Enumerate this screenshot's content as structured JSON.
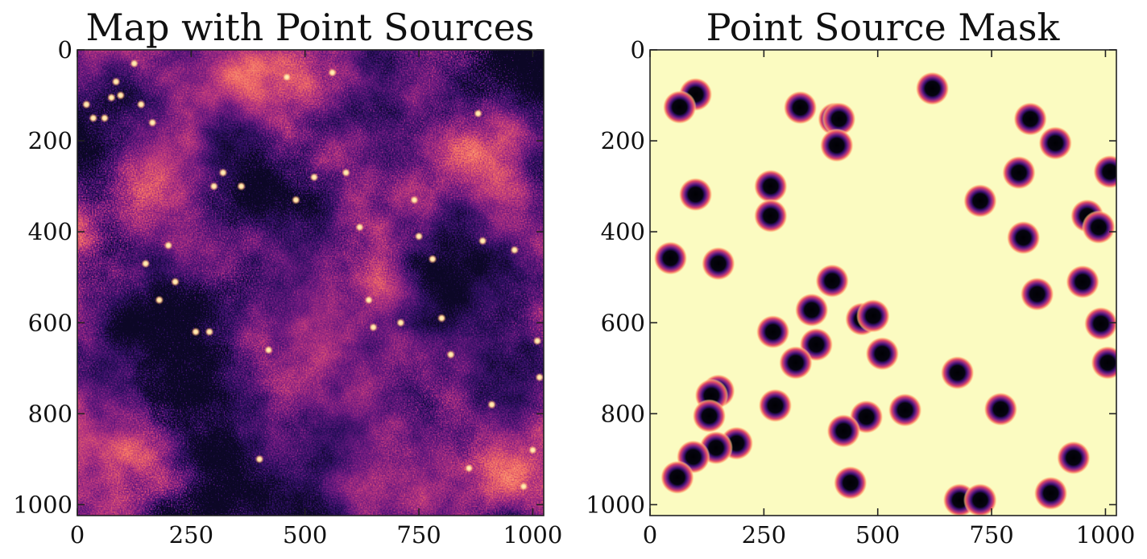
{
  "chart_data": [
    {
      "type": "heatmap",
      "title": "Map with Point Sources",
      "colormap": "magma",
      "xlim": [
        0,
        1024
      ],
      "ylim": [
        1024,
        0
      ],
      "xticks": [
        0,
        250,
        500,
        750,
        1000
      ],
      "yticks": [
        0,
        200,
        400,
        600,
        800,
        1000
      ],
      "xlabel": "",
      "ylabel": "",
      "point_sources": [
        [
          20,
          120
        ],
        [
          60,
          150
        ],
        [
          35,
          150
        ],
        [
          75,
          105
        ],
        [
          85,
          70
        ],
        [
          95,
          100
        ],
        [
          125,
          30
        ],
        [
          140,
          120
        ],
        [
          165,
          160
        ],
        [
          200,
          430
        ],
        [
          150,
          470
        ],
        [
          180,
          550
        ],
        [
          215,
          510
        ],
        [
          290,
          620
        ],
        [
          260,
          620
        ],
        [
          300,
          300
        ],
        [
          320,
          270
        ],
        [
          360,
          300
        ],
        [
          400,
          900
        ],
        [
          420,
          660
        ],
        [
          460,
          60
        ],
        [
          480,
          330
        ],
        [
          520,
          280
        ],
        [
          560,
          50
        ],
        [
          590,
          270
        ],
        [
          620,
          390
        ],
        [
          640,
          550
        ],
        [
          650,
          610
        ],
        [
          710,
          600
        ],
        [
          740,
          330
        ],
        [
          750,
          410
        ],
        [
          780,
          460
        ],
        [
          800,
          590
        ],
        [
          820,
          670
        ],
        [
          860,
          920
        ],
        [
          880,
          140
        ],
        [
          890,
          420
        ],
        [
          910,
          780
        ],
        [
          960,
          440
        ],
        [
          980,
          960
        ],
        [
          1000,
          880
        ],
        [
          1010,
          640
        ],
        [
          1015,
          720
        ]
      ]
    },
    {
      "type": "heatmap",
      "title": "Point Source Mask",
      "colormap": "magma",
      "background_color": "#fbfbc1",
      "xlim": [
        0,
        1024
      ],
      "ylim": [
        1024,
        0
      ],
      "xticks": [
        0,
        250,
        500,
        750,
        1000
      ],
      "yticks": [
        0,
        200,
        400,
        600,
        800,
        1000
      ],
      "xlabel": "",
      "ylabel": "",
      "masked_sources": [
        [
          100,
          98
        ],
        [
          65,
          126
        ],
        [
          330,
          127
        ],
        [
          405,
          152
        ],
        [
          415,
          152
        ],
        [
          410,
          210
        ],
        [
          620,
          85
        ],
        [
          835,
          152
        ],
        [
          890,
          205
        ],
        [
          1010,
          268
        ],
        [
          810,
          270
        ],
        [
          100,
          318
        ],
        [
          265,
          300
        ],
        [
          265,
          365
        ],
        [
          725,
          332
        ],
        [
          960,
          365
        ],
        [
          985,
          390
        ],
        [
          820,
          413
        ],
        [
          45,
          458
        ],
        [
          150,
          470
        ],
        [
          400,
          508
        ],
        [
          950,
          510
        ],
        [
          850,
          537
        ],
        [
          355,
          572
        ],
        [
          465,
          592
        ],
        [
          490,
          585
        ],
        [
          990,
          602
        ],
        [
          270,
          620
        ],
        [
          365,
          648
        ],
        [
          510,
          668
        ],
        [
          320,
          688
        ],
        [
          1005,
          688
        ],
        [
          675,
          710
        ],
        [
          150,
          750
        ],
        [
          135,
          760
        ],
        [
          275,
          782
        ],
        [
          770,
          790
        ],
        [
          130,
          805
        ],
        [
          475,
          807
        ],
        [
          560,
          792
        ],
        [
          425,
          838
        ],
        [
          190,
          865
        ],
        [
          145,
          875
        ],
        [
          95,
          895
        ],
        [
          930,
          897
        ],
        [
          60,
          940
        ],
        [
          440,
          952
        ],
        [
          880,
          975
        ],
        [
          680,
          990
        ],
        [
          725,
          990
        ]
      ]
    }
  ]
}
